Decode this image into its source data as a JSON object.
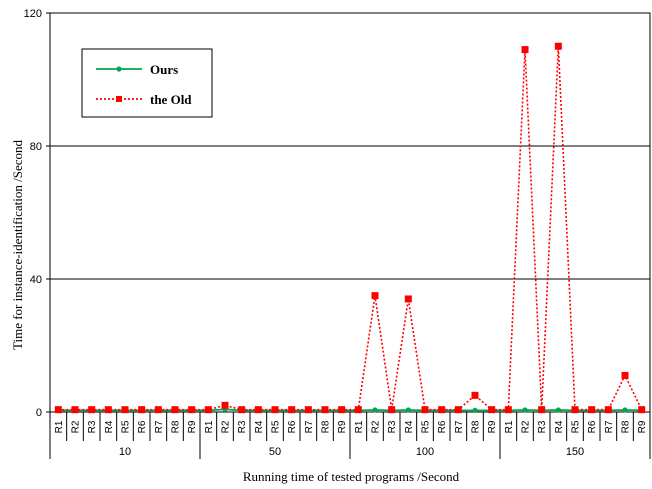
{
  "chart_data": {
    "type": "line",
    "xlabel": "Running time of tested programs /Second",
    "ylabel": "Time for instance-identification /Second",
    "ylim": [
      0,
      120
    ],
    "y_ticks": [
      0,
      40,
      80,
      120
    ],
    "grid": "horizontal",
    "legend_position": "top-left",
    "groups": [
      {
        "label": "10",
        "categories": [
          "R1",
          "R2",
          "R3",
          "R4",
          "R5",
          "R6",
          "R7",
          "R8",
          "R9"
        ]
      },
      {
        "label": "50",
        "categories": [
          "R1",
          "R2",
          "R3",
          "R4",
          "R5",
          "R6",
          "R7",
          "R8",
          "R9"
        ]
      },
      {
        "label": "100",
        "categories": [
          "R1",
          "R2",
          "R3",
          "R4",
          "R5",
          "R6",
          "R7",
          "R8",
          "R9"
        ]
      },
      {
        "label": "150",
        "categories": [
          "R1",
          "R2",
          "R3",
          "R4",
          "R5",
          "R6",
          "R7",
          "R8",
          "R9"
        ]
      }
    ],
    "series": [
      {
        "name": "Ours",
        "color": "#00a651",
        "marker": "circle",
        "line_style": "solid",
        "values": [
          0.5,
          0.5,
          0.5,
          0.5,
          0.5,
          0.5,
          0.5,
          0.5,
          0.5,
          0.5,
          0.8,
          0.5,
          0.5,
          0.5,
          0.5,
          0.5,
          0.5,
          0.5,
          0.5,
          0.6,
          0.5,
          0.6,
          0.5,
          0.5,
          0.5,
          0.5,
          0.5,
          0.5,
          0.6,
          0.5,
          0.6,
          0.5,
          0.5,
          0.5,
          0.6,
          0.5
        ]
      },
      {
        "name": "the Old",
        "color": "#ff0000",
        "marker": "square",
        "line_style": "dotted",
        "values": [
          0.7,
          0.7,
          0.7,
          0.7,
          0.7,
          0.7,
          0.7,
          0.7,
          0.7,
          0.7,
          2,
          0.7,
          0.7,
          0.7,
          0.7,
          0.7,
          0.7,
          0.7,
          0.7,
          35,
          0.7,
          34,
          0.7,
          0.7,
          0.7,
          5,
          0.7,
          0.7,
          109,
          0.7,
          110,
          0.7,
          0.7,
          0.7,
          11,
          0.7
        ]
      }
    ]
  }
}
